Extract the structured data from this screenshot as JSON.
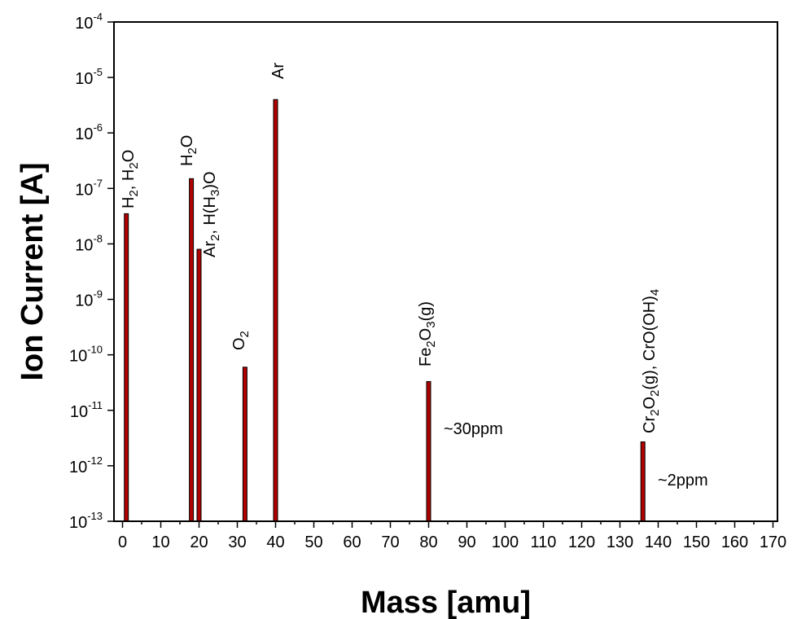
{
  "chart_data": {
    "type": "bar",
    "xlabel": "Mass [amu]",
    "ylabel": "Ion Current [A]",
    "xlim": [
      -5,
      170
    ],
    "x_ticks": [
      0,
      10,
      20,
      30,
      40,
      50,
      60,
      70,
      80,
      90,
      100,
      110,
      120,
      130,
      140,
      150,
      160,
      170
    ],
    "y_scale": "log",
    "ylim_exponents": [
      -13,
      -4
    ],
    "y_tick_base": "10",
    "y_tick_exponents": [
      "-13",
      "-12",
      "-11",
      "-10",
      "-9",
      "-8",
      "-7",
      "-6",
      "-5",
      "-4"
    ],
    "bar_color": "#b00000",
    "grid": false,
    "bars": [
      {
        "x": 1,
        "y": 3.5e-08
      },
      {
        "x": 18,
        "y": 1.5e-07
      },
      {
        "x": 20,
        "y": 8e-09
      },
      {
        "x": 32,
        "y": 6e-11
      },
      {
        "x": 40,
        "y": 4e-06
      },
      {
        "x": 80,
        "y": 3.3e-11
      },
      {
        "x": 136,
        "y": 2.7e-12
      }
    ],
    "annotations": [
      {
        "text": "~30ppm"
      },
      {
        "text": "~2ppm"
      }
    ],
    "species_labels": [
      {
        "parts": [
          [
            "H",
            ""
          ],
          [
            "2",
            "sub"
          ],
          [
            ", H",
            ""
          ],
          [
            "2",
            "sub"
          ],
          [
            "O",
            ""
          ]
        ]
      },
      {
        "parts": [
          [
            "H",
            ""
          ],
          [
            "2",
            "sub"
          ],
          [
            "O",
            ""
          ]
        ]
      },
      {
        "parts": [
          [
            "Ar",
            ""
          ],
          [
            "2",
            "sub"
          ],
          [
            ", H(H",
            ""
          ],
          [
            "3",
            "sub"
          ],
          [
            ")O",
            ""
          ]
        ]
      },
      {
        "parts": [
          [
            "O",
            ""
          ],
          [
            "2",
            "sub"
          ]
        ]
      },
      {
        "parts": [
          [
            "Ar",
            ""
          ]
        ]
      },
      {
        "parts": [
          [
            "Fe",
            ""
          ],
          [
            "2",
            "sub"
          ],
          [
            "O",
            ""
          ],
          [
            "3",
            "sub"
          ],
          [
            "(g)",
            ""
          ]
        ]
      },
      {
        "parts": [
          [
            "Cr",
            ""
          ],
          [
            "2",
            "sub"
          ],
          [
            "O",
            ""
          ],
          [
            "2",
            "sub"
          ],
          [
            "(g), CrO(OH)",
            ""
          ],
          [
            "4",
            "sub"
          ]
        ]
      }
    ]
  }
}
